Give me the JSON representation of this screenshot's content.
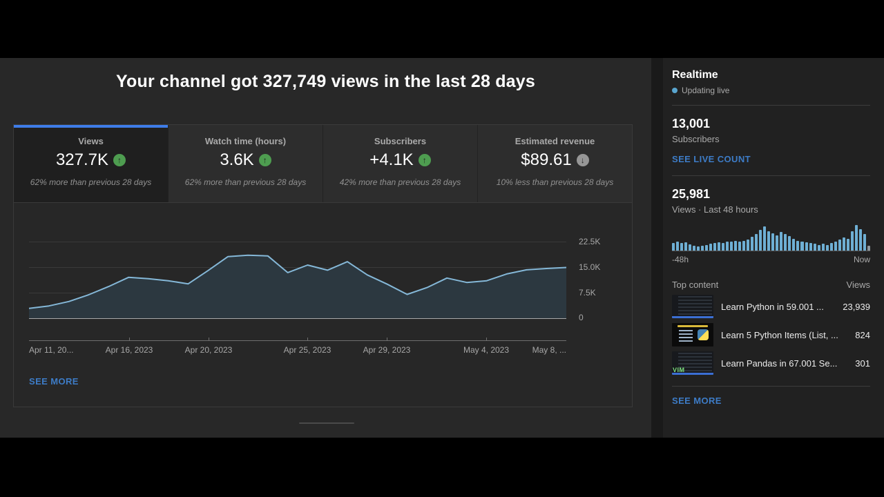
{
  "colors": {
    "page_bg": "#282828",
    "card_bg": "#212121",
    "accent_tab_blue": "#3e7ce8",
    "link_blue": "#3d7cc7",
    "trend_green": "#4e9d50",
    "trend_gray": "#969696",
    "line_blue": "#85b8d8",
    "area_fill": "#2c3840",
    "bar_blue": "#6eafd4",
    "bar_gray": "#8f979c",
    "live_dot_blue": "#59a5cf"
  },
  "header": {
    "title": "Your channel got 327,749 views in the last 28 days"
  },
  "tabs": [
    {
      "label": "Views",
      "value": "327.7K",
      "trend": "up",
      "trend_icon": "up-arrow-circle",
      "delta": "62% more than previous 28 days",
      "active": true
    },
    {
      "label": "Watch time (hours)",
      "value": "3.6K",
      "trend": "up",
      "trend_icon": "up-arrow-circle",
      "delta": "62% more than previous 28 days",
      "active": false
    },
    {
      "label": "Subscribers",
      "value": "+4.1K",
      "trend": "up",
      "trend_icon": "up-arrow-circle",
      "delta": "42% more than previous 28 days",
      "active": false
    },
    {
      "label": "Estimated revenue",
      "value": "$89.61",
      "trend": "down",
      "trend_icon": "down-arrow-circle",
      "delta": "10% less than previous 28 days",
      "active": false
    }
  ],
  "main_see_more": "SEE MORE",
  "chart_data": [
    {
      "type": "area",
      "title": "Channel views per day, last 28 days",
      "x": [
        "Apr 11",
        "Apr 12",
        "Apr 13",
        "Apr 14",
        "Apr 15",
        "Apr 16",
        "Apr 17",
        "Apr 18",
        "Apr 19",
        "Apr 20",
        "Apr 21",
        "Apr 22",
        "Apr 23",
        "Apr 24",
        "Apr 25",
        "Apr 26",
        "Apr 27",
        "Apr 28",
        "Apr 29",
        "Apr 30",
        "May 1",
        "May 2",
        "May 3",
        "May 4",
        "May 5",
        "May 6",
        "May 7",
        "May 8"
      ],
      "values": [
        2900,
        3600,
        4900,
        6900,
        9300,
        12000,
        11600,
        11000,
        10100,
        14000,
        18100,
        18500,
        18300,
        13400,
        15600,
        14100,
        16600,
        12700,
        10000,
        7000,
        9000,
        11800,
        10500,
        11000,
        13000,
        14200,
        14600,
        14900
      ],
      "ylim": [
        0,
        26000
      ],
      "y_tick_labels": [
        "22.5K",
        "15.0K",
        "7.5K",
        "0"
      ],
      "y_tick_values": [
        22500,
        15000,
        7500,
        0
      ],
      "x_axis_labels": [
        "Apr 11, 20...",
        "Apr 16, 2023",
        "Apr 20, 2023",
        "Apr 25, 2023",
        "Apr 29, 2023",
        "May 4, 2023",
        "May 8, ..."
      ],
      "grid": true,
      "legend": "none"
    },
    {
      "type": "bar",
      "title": "Views, last 48 hours",
      "values": [
        0.29,
        0.33,
        0.28,
        0.31,
        0.23,
        0.19,
        0.16,
        0.19,
        0.21,
        0.26,
        0.29,
        0.31,
        0.29,
        0.33,
        0.35,
        0.37,
        0.33,
        0.37,
        0.42,
        0.52,
        0.64,
        0.78,
        0.92,
        0.73,
        0.67,
        0.57,
        0.71,
        0.63,
        0.55,
        0.46,
        0.38,
        0.35,
        0.31,
        0.28,
        0.25,
        0.22,
        0.25,
        0.22,
        0.28,
        0.33,
        0.41,
        0.49,
        0.46,
        0.73,
        0.97,
        0.81,
        0.63,
        0.18
      ],
      "last_bar_partial": true,
      "x_axis_labels": [
        "-48h",
        "Now"
      ],
      "ylim": [
        0,
        1
      ],
      "grid": false,
      "legend": "none"
    }
  ],
  "realtime": {
    "title": "Realtime",
    "updating": "Updating live",
    "subscribers_count": "13,001",
    "subscribers_label": "Subscribers",
    "live_count_link": "SEE LIVE COUNT",
    "views_count": "25,981",
    "views_label": "Views · Last 48 hours",
    "bars_left_label": "-48h",
    "bars_right_label": "Now",
    "top_content": {
      "title": "Top content",
      "views_header": "Views",
      "rows": [
        {
          "title": "Learn Python in 59.001 ...",
          "views": "23,939",
          "thumbnail": "code-editor-thumbnail"
        },
        {
          "title": "Learn 5 Python Items (List, ...",
          "views": "824",
          "thumbnail": "python-logo-thumbnail"
        },
        {
          "title": "Learn Pandas in 67.001 Se...",
          "views": "301",
          "thumbnail": "vim-code-thumbnail"
        }
      ]
    },
    "see_more": "SEE MORE"
  }
}
